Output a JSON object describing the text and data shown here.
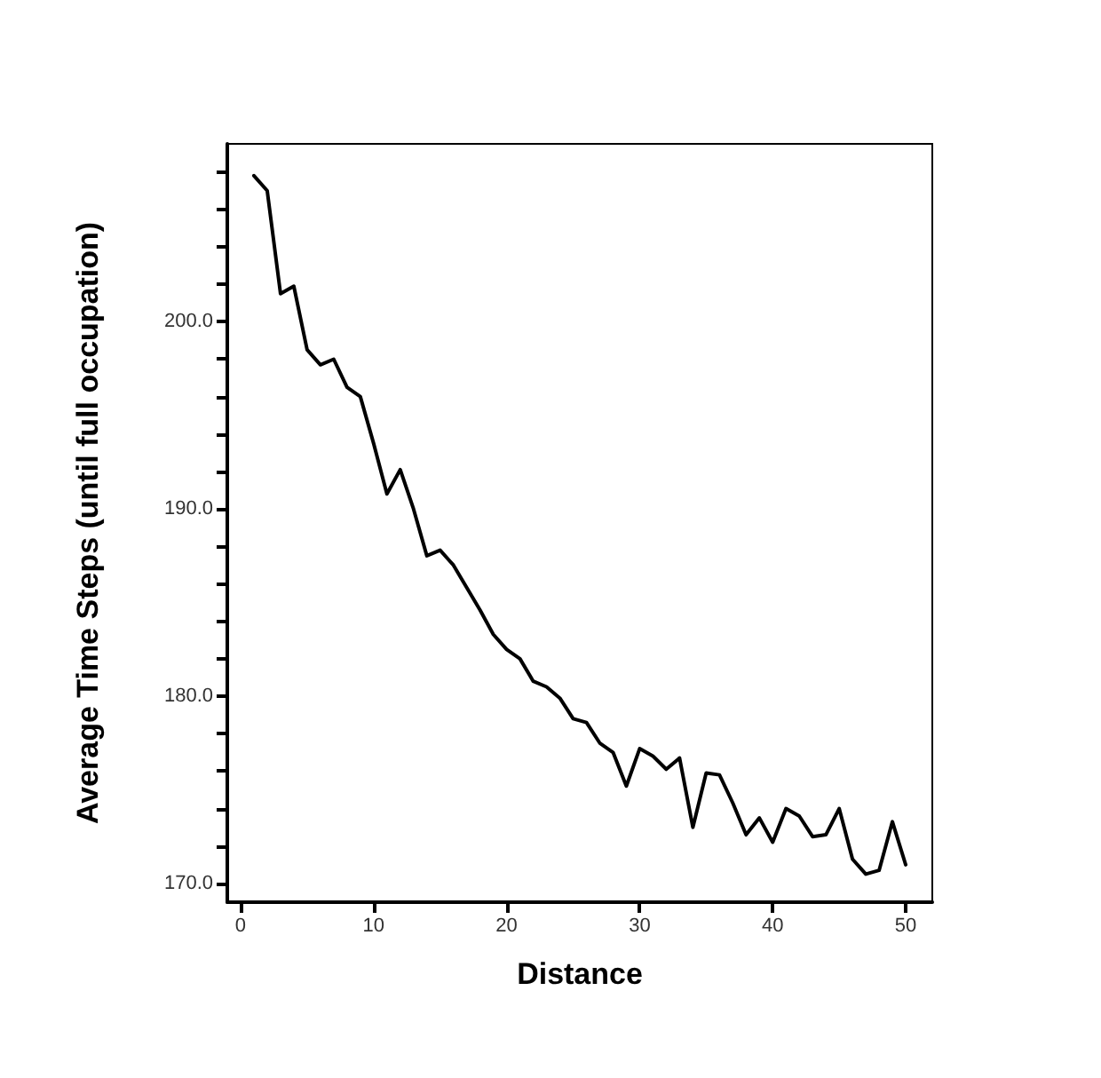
{
  "chart_data": {
    "type": "line",
    "xlabel": "Distance",
    "ylabel": "Average Time Steps (until full occupation)",
    "x": [
      1,
      2,
      3,
      4,
      5,
      6,
      7,
      8,
      9,
      10,
      11,
      12,
      13,
      14,
      15,
      16,
      17,
      18,
      19,
      20,
      21,
      22,
      23,
      24,
      25,
      26,
      27,
      28,
      29,
      30,
      31,
      32,
      33,
      34,
      35,
      36,
      37,
      38,
      39,
      40,
      41,
      42,
      43,
      44,
      45,
      46,
      47,
      48,
      49,
      50
    ],
    "series": [
      {
        "color": "#000000",
        "values": [
          207.8,
          207.0,
          201.5,
          201.9,
          198.5,
          197.7,
          198.0,
          196.5,
          196.0,
          193.5,
          190.8,
          192.1,
          190.0,
          187.5,
          187.8,
          187.0,
          185.8,
          184.6,
          183.3,
          182.5,
          182.0,
          180.8,
          180.5,
          179.9,
          178.8,
          178.6,
          177.5,
          177.0,
          175.2,
          177.2,
          176.8,
          176.1,
          176.7,
          173.0,
          175.9,
          175.8,
          174.3,
          172.6,
          173.5,
          172.2,
          174.0,
          173.6,
          172.5,
          172.6,
          174.0,
          171.3,
          170.5,
          170.7,
          173.3,
          171.0
        ]
      }
    ],
    "xlim": [
      -1,
      52
    ],
    "xticks": [
      0,
      10,
      20,
      30,
      40,
      50
    ],
    "ylim": [
      169,
      209.5
    ],
    "yticks": [
      {
        "value": 170,
        "label": "170.0"
      },
      {
        "value": 172,
        "label": null
      },
      {
        "value": 174,
        "label": null
      },
      {
        "value": 176,
        "label": null
      },
      {
        "value": 178,
        "label": null
      },
      {
        "value": 180,
        "label": "180.0"
      },
      {
        "value": 182,
        "label": null
      },
      {
        "value": 184,
        "label": null
      },
      {
        "value": 186,
        "label": null
      },
      {
        "value": 188,
        "label": null
      },
      {
        "value": 190,
        "label": "190.0"
      },
      {
        "value": 192,
        "label": null
      },
      {
        "value": 194,
        "label": null
      },
      {
        "value": 196,
        "label": null
      },
      {
        "value": 198,
        "label": null
      },
      {
        "value": 200,
        "label": "200.0"
      },
      {
        "value": 202,
        "label": null
      },
      {
        "value": 204,
        "label": null
      },
      {
        "value": 206,
        "label": null
      },
      {
        "value": 208,
        "label": null
      }
    ],
    "grid": false,
    "marker": "none",
    "line_style": "solid"
  }
}
